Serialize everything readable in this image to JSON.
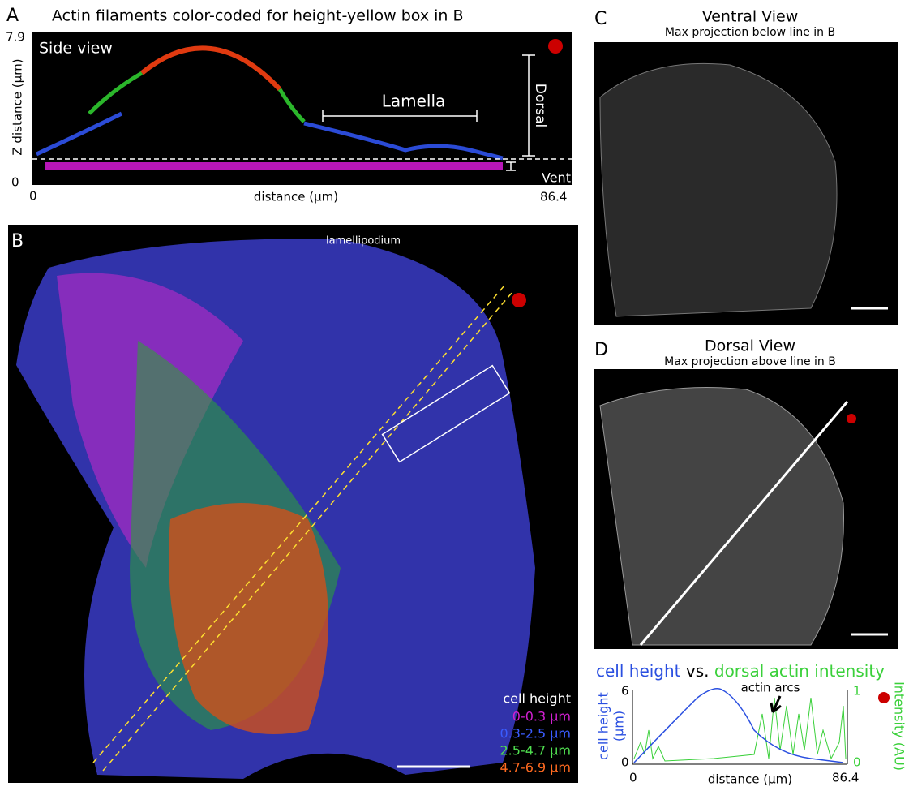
{
  "panel_a": {
    "letter": "A",
    "title": "Actin filaments color-coded for height-yellow box in B",
    "y_max": "7.9",
    "y_label": "Z distance (µm)",
    "y_min": "0",
    "inset": "Side view",
    "lamella": "Lamella",
    "dorsal": "Dorsal",
    "ventral": "Ventral",
    "x_min": "0",
    "x_label": "distance (µm)",
    "x_max": "86.4"
  },
  "panel_b": {
    "letter": "B",
    "lamellipodium": "lamellipodium",
    "legend_title": "cell height",
    "legend": [
      "0-0.3 µm",
      "0.3-2.5 µm",
      "2.5-4.7 µm",
      "4.7-6.9 µm"
    ]
  },
  "panel_c": {
    "letter": "C",
    "title": "Ventral View",
    "subtitle": "Max projection below line in B"
  },
  "panel_d": {
    "letter": "D",
    "title": "Dorsal View",
    "subtitle": "Max projection above line in B",
    "plot": {
      "title_left": "cell height",
      "title_mid": "vs.",
      "title_right": "dorsal actin intensity",
      "annotation": "actin arcs",
      "y_label_1": "cell height",
      "y_label_2": "(µm)",
      "y_max": "6",
      "y_min": "0",
      "y2_label": "Intensity (AU)",
      "y2_max": "1",
      "y2_min": "0",
      "x_min": "0",
      "x_label": "distance (µm)",
      "x_max": "86.4"
    }
  }
}
